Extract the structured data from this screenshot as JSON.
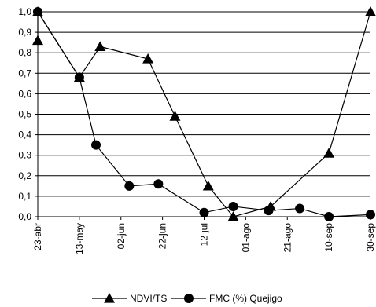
{
  "chart_data": {
    "type": "line",
    "title": "",
    "xlabel": "",
    "ylabel": "",
    "x_ticks": [
      "23-abr",
      "13-may",
      "02-jun",
      "22-jun",
      "12-jul",
      "01-ago",
      "21-ago",
      "10-sep",
      "30-sep"
    ],
    "y_ticks": [
      "0,0",
      "0,1",
      "0,2",
      "0,3",
      "0,4",
      "0,5",
      "0,6",
      "0,7",
      "0,8",
      "0,9",
      "1,0"
    ],
    "ylim": [
      0,
      1
    ],
    "grid": "horizontal",
    "legend_position": "bottom",
    "series": [
      {
        "name": "NDVI/TS",
        "marker": "triangle",
        "color": "#000000",
        "points": [
          {
            "x": "23-abr",
            "y": 0.86
          },
          {
            "x": "23-abr",
            "y": 1.0
          },
          {
            "x": "13-may",
            "y": 0.68
          },
          {
            "x": "23-may",
            "y": 0.83
          },
          {
            "x": "15-jun",
            "y": 0.77
          },
          {
            "x": "28-jun",
            "y": 0.49
          },
          {
            "x": "14-jul",
            "y": 0.15
          },
          {
            "x": "26-jul",
            "y": 0.0
          },
          {
            "x": "13-ago",
            "y": 0.05
          },
          {
            "x": "10-sep",
            "y": 0.31
          },
          {
            "x": "30-sep",
            "y": 1.0
          }
        ]
      },
      {
        "name": "FMC (%) Quejigo",
        "marker": "diamond",
        "color": "#000000",
        "points": [
          {
            "x": "23-abr",
            "y": 1.0
          },
          {
            "x": "13-may",
            "y": 0.68
          },
          {
            "x": "21-may",
            "y": 0.35
          },
          {
            "x": "06-jun",
            "y": 0.15
          },
          {
            "x": "20-jun",
            "y": 0.16
          },
          {
            "x": "12-jul",
            "y": 0.02
          },
          {
            "x": "26-jul",
            "y": 0.05
          },
          {
            "x": "12-ago",
            "y": 0.03
          },
          {
            "x": "27-ago",
            "y": 0.04
          },
          {
            "x": "10-sep",
            "y": 0.0
          },
          {
            "x": "30-sep",
            "y": 0.01
          }
        ]
      }
    ]
  }
}
